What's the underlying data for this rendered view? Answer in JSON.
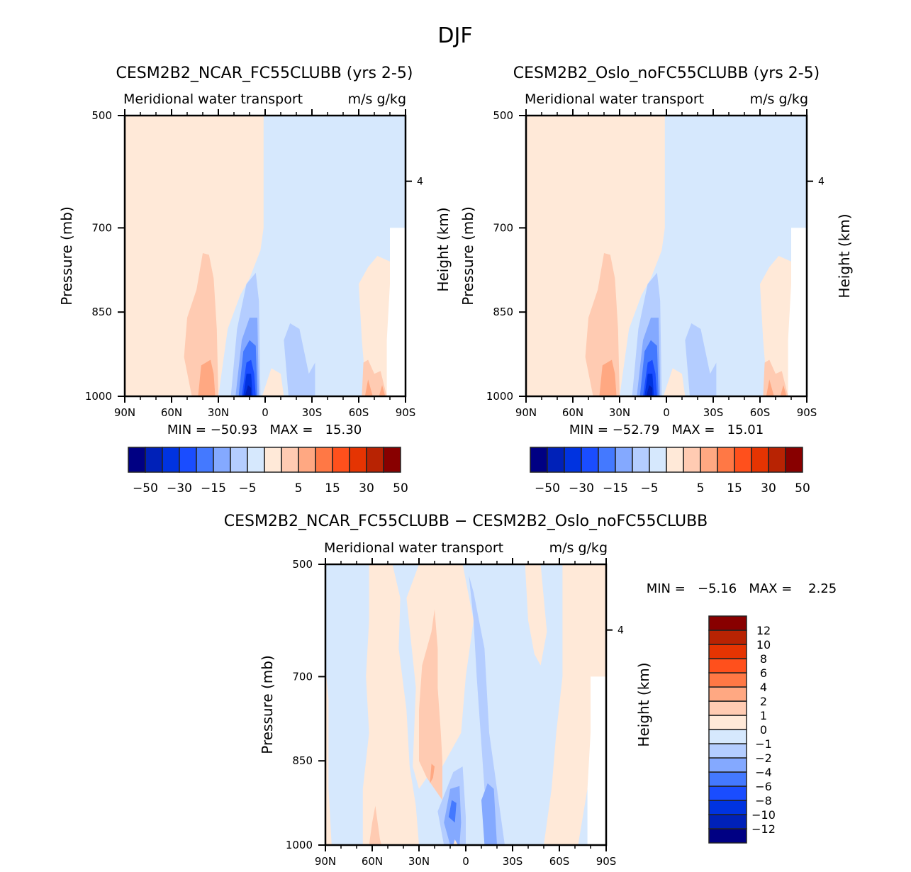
{
  "page_title": "DJF",
  "chart_data": [
    {
      "type": "heatmap",
      "subtype": "filled-contour latitude-pressure cross section",
      "title": "CESM2B2_NCAR_FC55CLUBB (yrs 2-5)",
      "subtitle_left": "Meridional water transport",
      "subtitle_right": "m/s g/kg",
      "xlabel": "",
      "ylabel": "Pressure (mb)",
      "ylabel_right": "Height (km)",
      "x_ticks": [
        "90N",
        "60N",
        "30N",
        "0",
        "30S",
        "60S",
        "90S"
      ],
      "x_range": [
        90,
        -90
      ],
      "y_ticks": [
        "500",
        "700",
        "850",
        "1000"
      ],
      "y_range": [
        500,
        1000
      ],
      "y_right_ticks": [
        "4"
      ],
      "stats": "MIN = −50.93   MAX =   15.30",
      "min": -50.93,
      "max": 15.3,
      "colorbar": {
        "orientation": "horizontal",
        "levels": [
          -50,
          -40,
          -30,
          -20,
          -15,
          -10,
          -5,
          0,
          5,
          10,
          15,
          20,
          30,
          40,
          50
        ],
        "tick_labels": [
          "−50",
          "−30",
          "−15",
          "−5",
          "5",
          "15",
          "30",
          "50"
        ]
      }
    },
    {
      "type": "heatmap",
      "subtype": "filled-contour latitude-pressure cross section",
      "title": "CESM2B2_Oslo_noFC55CLUBB (yrs 2-5)",
      "subtitle_left": "Meridional water transport",
      "subtitle_right": "m/s g/kg",
      "xlabel": "",
      "ylabel": "Pressure (mb)",
      "ylabel_right": "Height (km)",
      "x_ticks": [
        "90N",
        "60N",
        "30N",
        "0",
        "30S",
        "60S",
        "90S"
      ],
      "x_range": [
        90,
        -90
      ],
      "y_ticks": [
        "500",
        "700",
        "850",
        "1000"
      ],
      "y_range": [
        500,
        1000
      ],
      "y_right_ticks": [
        "4"
      ],
      "stats": "MIN = −52.79   MAX =   15.01",
      "min": -52.79,
      "max": 15.01,
      "colorbar": {
        "orientation": "horizontal",
        "levels": [
          -50,
          -40,
          -30,
          -20,
          -15,
          -10,
          -5,
          0,
          5,
          10,
          15,
          20,
          30,
          40,
          50
        ],
        "tick_labels": [
          "−50",
          "−30",
          "−15",
          "−5",
          "5",
          "15",
          "30",
          "50"
        ]
      }
    },
    {
      "type": "heatmap",
      "subtype": "filled-contour latitude-pressure cross section (difference)",
      "title": "CESM2B2_NCAR_FC55CLUBB − CESM2B2_Oslo_noFC55CLUBB",
      "subtitle_left": "Meridional water transport",
      "subtitle_right": "m/s g/kg",
      "xlabel": "",
      "ylabel": "Pressure (mb)",
      "ylabel_right": "Height (km)",
      "x_ticks": [
        "90N",
        "60N",
        "30N",
        "0",
        "30S",
        "60S",
        "90S"
      ],
      "x_range": [
        90,
        -90
      ],
      "y_ticks": [
        "500",
        "700",
        "850",
        "1000"
      ],
      "y_range": [
        500,
        1000
      ],
      "y_right_ticks": [
        "4"
      ],
      "stats": "MIN =   −5.16   MAX =    2.25",
      "min": -5.16,
      "max": 2.25,
      "colorbar": {
        "orientation": "vertical",
        "levels": [
          -12,
          -10,
          -8,
          -6,
          -4,
          -2,
          -1,
          0,
          1,
          2,
          4,
          6,
          8,
          10,
          12
        ],
        "tick_labels": [
          "12",
          "10",
          "8",
          "6",
          "4",
          "2",
          "1",
          "0",
          "−1",
          "−2",
          "−4",
          "−6",
          "−8",
          "−10",
          "−12"
        ]
      }
    }
  ],
  "palette": [
    "#000083",
    "#0021b8",
    "#0033e0",
    "#1a4dff",
    "#4479ff",
    "#84a9ff",
    "#b4cdff",
    "#d6e8fd",
    "#ffe9d8",
    "#ffcbb2",
    "#ffa882",
    "#ff7845",
    "#ff501c",
    "#e53402",
    "#b82303",
    "#880000"
  ]
}
